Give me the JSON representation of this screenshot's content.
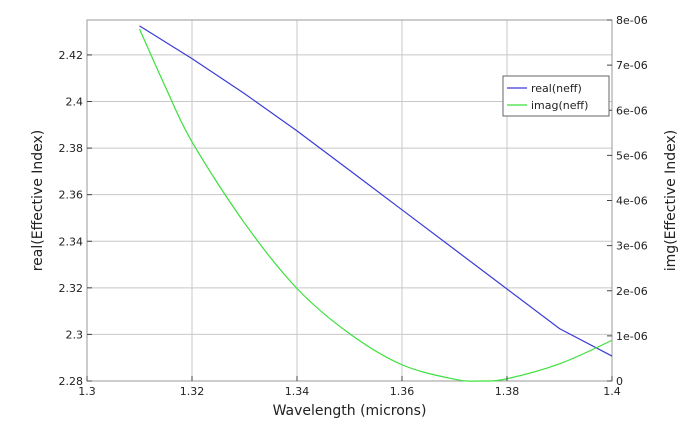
{
  "chart_data": {
    "type": "line",
    "title": "",
    "xlabel": "Wavelength (microns)",
    "ylabel_left": "real(Effective Index)",
    "ylabel_right": "img(Effective Index)",
    "xlim": [
      1.3,
      1.4
    ],
    "ylim_left": [
      2.28,
      2.435
    ],
    "ylim_right": [
      0,
      8e-06
    ],
    "x_ticks": [
      "1.3",
      "1.32",
      "1.34",
      "1.36",
      "1.38",
      "1.4"
    ],
    "y_left_ticks": [
      "2.28",
      "2.3",
      "2.32",
      "2.34",
      "2.36",
      "2.38",
      "2.4",
      "2.42"
    ],
    "y_right_ticks": [
      "0",
      "1e-06",
      "2e-06",
      "3e-06",
      "4e-06",
      "5e-06",
      "6e-06",
      "7e-06",
      "8e-06"
    ],
    "grid": true,
    "legend_position": "top-right",
    "series": [
      {
        "name": "real(neff)",
        "axis": "left",
        "color": "#3b3bd6",
        "x": [
          1.31,
          1.32,
          1.33,
          1.34,
          1.35,
          1.36,
          1.37,
          1.38,
          1.39,
          1.4
        ],
        "y": [
          2.4325,
          2.4184,
          2.4034,
          2.3874,
          2.3705,
          2.3535,
          2.3365,
          2.3195,
          2.3025,
          2.2907
        ]
      },
      {
        "name": "imag(neff)",
        "axis": "right",
        "color": "#3ce03c",
        "x": [
          1.31,
          1.315,
          1.32,
          1.33,
          1.34,
          1.35,
          1.36,
          1.37,
          1.375,
          1.38,
          1.39,
          1.4
        ],
        "y": [
          7.8e-06,
          6.5e-06,
          5.3e-06,
          3.5e-06,
          2.05e-06,
          1.05e-06,
          3.6e-07,
          4e-08,
          0.0,
          5e-08,
          3.8e-07,
          9e-07
        ]
      }
    ]
  }
}
